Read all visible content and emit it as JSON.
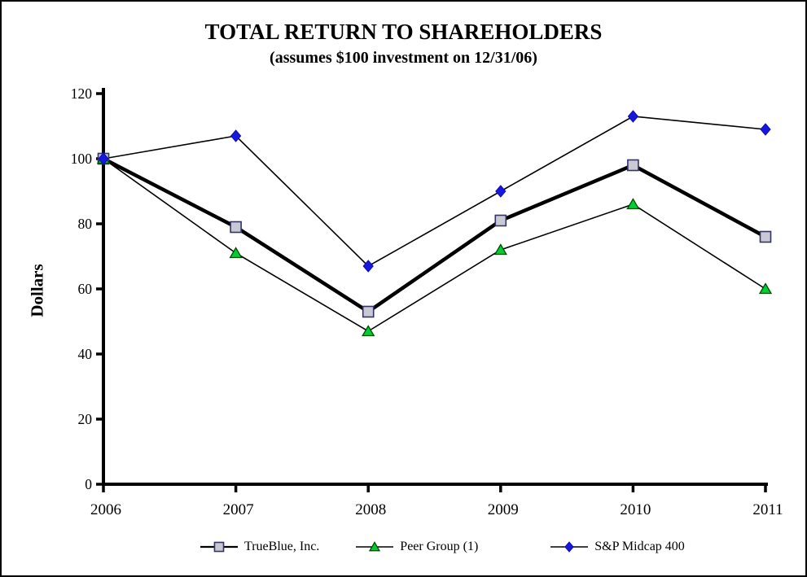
{
  "page": {
    "background": "#ffffff",
    "frame_color": "#000000"
  },
  "chart_data": {
    "type": "line",
    "title": "TOTAL RETURN TO SHAREHOLDERS",
    "subtitle": "(assumes $100 investment on 12/31/06)",
    "xlabel": "",
    "ylabel": "Dollars",
    "categories": [
      "2006",
      "2007",
      "2008",
      "2009",
      "2010",
      "2011"
    ],
    "ylim": [
      0,
      120
    ],
    "yticks": [
      0,
      20,
      40,
      60,
      80,
      100,
      120
    ],
    "grid": false,
    "legend_position": "bottom",
    "axis_color": "#000000",
    "series": [
      {
        "name": "TrueBlue, Inc.",
        "values": [
          100,
          79,
          53,
          81,
          98,
          76
        ],
        "marker": "square",
        "marker_fill": "#c9c9d6",
        "marker_stroke": "#333366",
        "line_color": "#000000",
        "line_width": 4.5
      },
      {
        "name": "Peer Group (1)",
        "values": [
          100,
          71,
          47,
          72,
          86,
          60
        ],
        "marker": "triangle",
        "marker_fill": "#00cc33",
        "marker_stroke": "#004d00",
        "line_color": "#000000",
        "line_width": 1.6
      },
      {
        "name": "S&P Midcap 400",
        "values": [
          100,
          107,
          67,
          90,
          113,
          109
        ],
        "marker": "diamond",
        "marker_fill": "#1717e0",
        "marker_stroke": "#0b0bb0",
        "line_color": "#000000",
        "line_width": 1.6
      }
    ]
  }
}
